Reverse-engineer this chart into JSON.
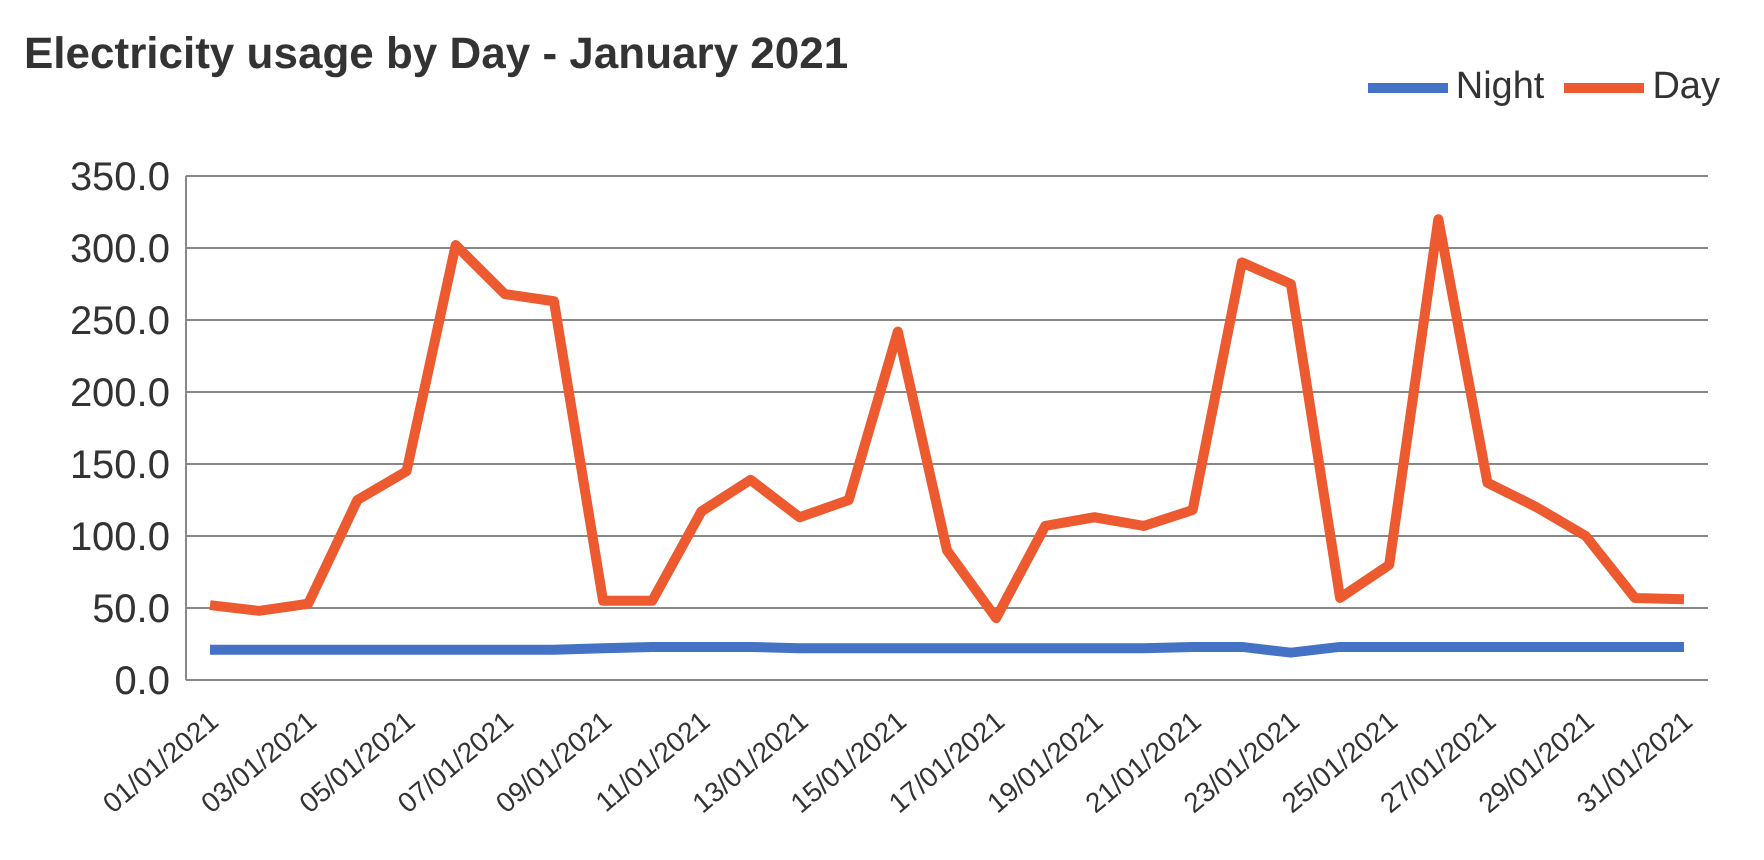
{
  "chart_data": {
    "type": "line",
    "title": "Electricity usage by Day - January 2021",
    "categories": [
      "01/01/2021",
      null,
      "03/01/2021",
      null,
      "05/01/2021",
      null,
      "07/01/2021",
      null,
      "09/01/2021",
      null,
      "11/01/2021",
      null,
      "13/01/2021",
      null,
      "15/01/2021",
      null,
      "17/01/2021",
      null,
      "19/01/2021",
      null,
      "21/01/2021",
      null,
      "23/01/2021",
      null,
      "25/01/2021",
      null,
      "27/01/2021",
      null,
      "29/01/2021",
      null,
      "31/01/2021"
    ],
    "series": [
      {
        "name": "Night",
        "color": "#4472c4",
        "values": [
          21,
          21,
          21,
          21,
          21,
          21,
          21,
          21,
          22,
          23,
          23,
          23,
          22,
          22,
          22,
          22,
          22,
          22,
          22,
          22,
          23,
          23,
          19,
          23,
          23,
          23,
          23,
          23,
          23,
          23,
          23
        ]
      },
      {
        "name": "Day",
        "color": "#ed5a2f",
        "values": [
          52,
          48,
          53,
          125,
          145,
          302,
          268,
          263,
          55,
          55,
          117,
          139,
          113,
          125,
          242,
          90,
          43,
          107,
          113,
          107,
          118,
          290,
          275,
          57,
          80,
          320,
          137,
          120,
          100,
          57,
          56
        ]
      }
    ],
    "ylim": [
      0,
      350
    ],
    "yticks": [
      {
        "value": 0,
        "label": "0.0"
      },
      {
        "value": 50,
        "label": "50.0"
      },
      {
        "value": 100,
        "label": "100.0"
      },
      {
        "value": 150,
        "label": "150.0"
      },
      {
        "value": 200,
        "label": "200.0"
      },
      {
        "value": 250,
        "label": "250.0"
      },
      {
        "value": 300,
        "label": "300.0"
      },
      {
        "value": 350,
        "label": "350.0"
      }
    ],
    "grid": "y",
    "legend": "top right",
    "marker": "none",
    "line_style": "solid"
  }
}
